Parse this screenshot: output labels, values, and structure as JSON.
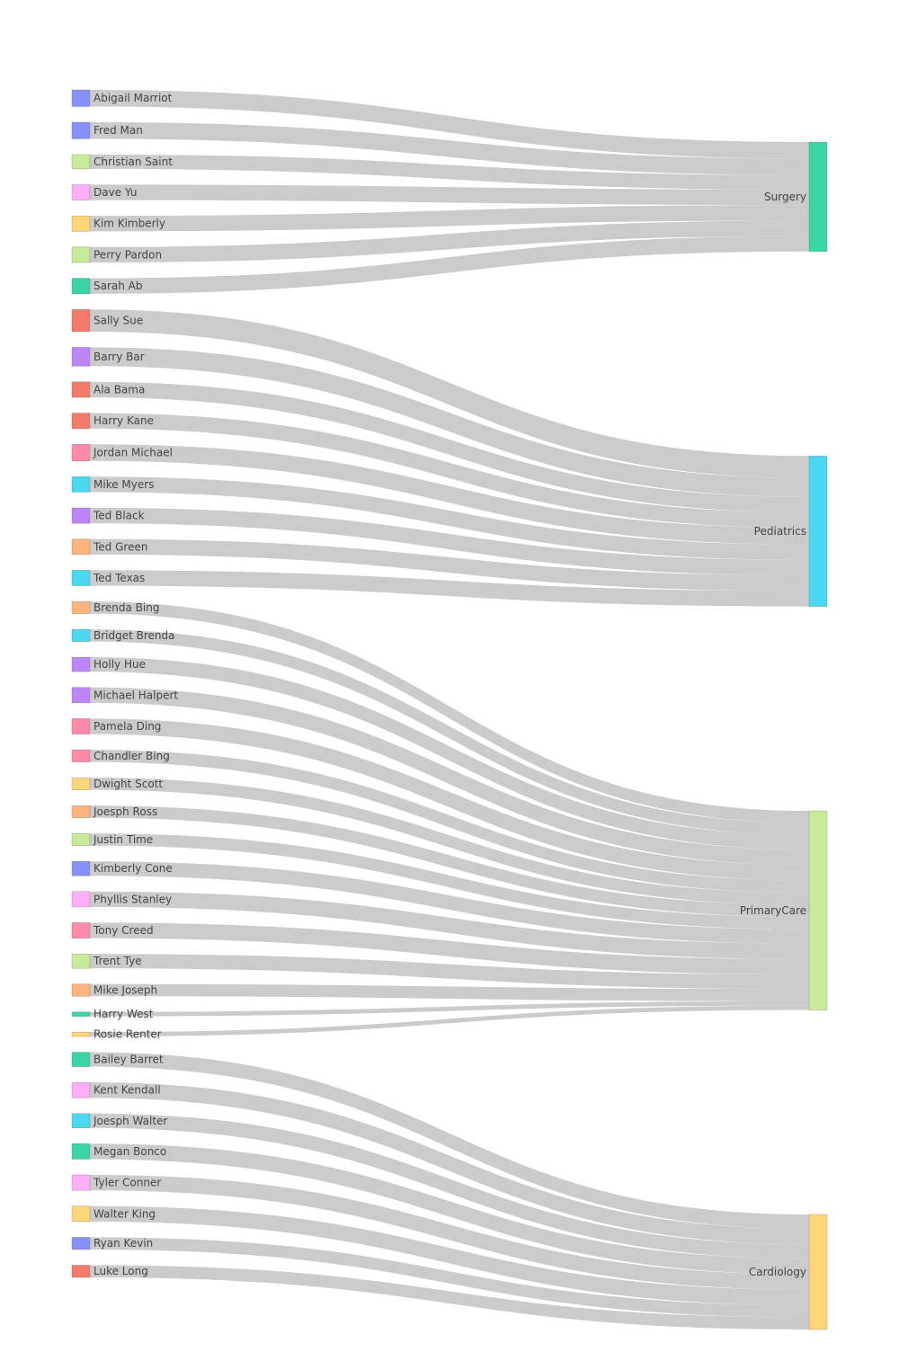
{
  "chart_data": {
    "type": "sankey",
    "sources": [
      {
        "name": "Abigail Marriot",
        "value": 15,
        "target": "Surgery",
        "color": "#8790f5"
      },
      {
        "name": "Fred Man",
        "value": 15,
        "target": "Surgery",
        "color": "#8790f5"
      },
      {
        "name": "Christian Saint",
        "value": 13,
        "target": "Surgery",
        "color": "#c8eb9a"
      },
      {
        "name": "Dave Yu",
        "value": 14,
        "target": "Surgery",
        "color": "#ffaff8"
      },
      {
        "name": "Kim Kimberly",
        "value": 14,
        "target": "Surgery",
        "color": "#ffd579"
      },
      {
        "name": "Perry Pardon",
        "value": 14,
        "target": "Surgery",
        "color": "#c8eb9a"
      },
      {
        "name": "Sarah Ab",
        "value": 14,
        "target": "Surgery",
        "color": "#39d5a6"
      },
      {
        "name": "Sally Sue",
        "value": 20,
        "target": "Pediatrics",
        "color": "#f47a69"
      },
      {
        "name": "Barry Bar",
        "value": 17,
        "target": "Pediatrics",
        "color": "#bd86f8"
      },
      {
        "name": "Ala Bama",
        "value": 14,
        "target": "Pediatrics",
        "color": "#f47a69"
      },
      {
        "name": "Harry Kane",
        "value": 14,
        "target": "Pediatrics",
        "color": "#f47a69"
      },
      {
        "name": "Jordan Michael",
        "value": 15,
        "target": "Pediatrics",
        "color": "#fd8aa8"
      },
      {
        "name": "Mike Myers",
        "value": 14,
        "target": "Pediatrics",
        "color": "#4ad8f0"
      },
      {
        "name": "Ted Black",
        "value": 14,
        "target": "Pediatrics",
        "color": "#bd86f8"
      },
      {
        "name": "Ted Green",
        "value": 14,
        "target": "Pediatrics",
        "color": "#ffb47e"
      },
      {
        "name": "Ted Texas",
        "value": 14,
        "target": "Pediatrics",
        "color": "#4ad8f0"
      },
      {
        "name": "Brenda Bing",
        "value": 11,
        "target": "PrimaryCare",
        "color": "#ffb47e"
      },
      {
        "name": "Bridget Brenda",
        "value": 11,
        "target": "PrimaryCare",
        "color": "#4ad8f0"
      },
      {
        "name": "Holly Hue",
        "value": 13,
        "target": "PrimaryCare",
        "color": "#bd86f8"
      },
      {
        "name": "Michael Halpert",
        "value": 14,
        "target": "PrimaryCare",
        "color": "#bd86f8"
      },
      {
        "name": "Pamela Ding",
        "value": 14,
        "target": "PrimaryCare",
        "color": "#fd8aa8"
      },
      {
        "name": "Chandler Bing",
        "value": 11,
        "target": "PrimaryCare",
        "color": "#fd8aa8"
      },
      {
        "name": "Dwight Scott",
        "value": 11,
        "target": "PrimaryCare",
        "color": "#ffd579"
      },
      {
        "name": "Joesph Ross",
        "value": 11,
        "target": "PrimaryCare",
        "color": "#ffb47e"
      },
      {
        "name": "Justin Time",
        "value": 11,
        "target": "PrimaryCare",
        "color": "#c8eb9a"
      },
      {
        "name": "Kimberly Cone",
        "value": 13,
        "target": "PrimaryCare",
        "color": "#8790f5"
      },
      {
        "name": "Phyllis Stanley",
        "value": 14,
        "target": "PrimaryCare",
        "color": "#ffaff8"
      },
      {
        "name": "Tony Creed",
        "value": 14,
        "target": "PrimaryCare",
        "color": "#fd8aa8"
      },
      {
        "name": "Trent Tye",
        "value": 13,
        "target": "PrimaryCare",
        "color": "#c8eb9a"
      },
      {
        "name": "Mike Joseph",
        "value": 11,
        "target": "PrimaryCare",
        "color": "#ffb47e"
      },
      {
        "name": "Harry West",
        "value": 4,
        "target": "PrimaryCare",
        "color": "#39d5a6"
      },
      {
        "name": "Rosie Renter",
        "value": 4,
        "target": "PrimaryCare",
        "color": "#ffd579"
      },
      {
        "name": "Bailey Barret",
        "value": 13,
        "target": "Cardiology",
        "color": "#39d5a6"
      },
      {
        "name": "Kent Kendall",
        "value": 14,
        "target": "Cardiology",
        "color": "#ffaff8"
      },
      {
        "name": "Joesph Walter",
        "value": 13,
        "target": "Cardiology",
        "color": "#4ad8f0"
      },
      {
        "name": "Megan Bonco",
        "value": 14,
        "target": "Cardiology",
        "color": "#39d5a6"
      },
      {
        "name": "Tyler Conner",
        "value": 14,
        "target": "Cardiology",
        "color": "#ffaff8"
      },
      {
        "name": "Walter King",
        "value": 14,
        "target": "Cardiology",
        "color": "#ffd579"
      },
      {
        "name": "Ryan Kevin",
        "value": 11,
        "target": "Cardiology",
        "color": "#8790f5"
      },
      {
        "name": "Luke Long",
        "value": 11,
        "target": "Cardiology",
        "color": "#f47a69"
      }
    ],
    "targets": [
      {
        "name": "Surgery",
        "color": "#39d5a6"
      },
      {
        "name": "Pediatrics",
        "color": "#4ad8f0"
      },
      {
        "name": "PrimaryCare",
        "color": "#c8eb9a"
      },
      {
        "name": "Cardiology",
        "color": "#ffd579"
      }
    ],
    "link_color": "#c8c8c8"
  }
}
